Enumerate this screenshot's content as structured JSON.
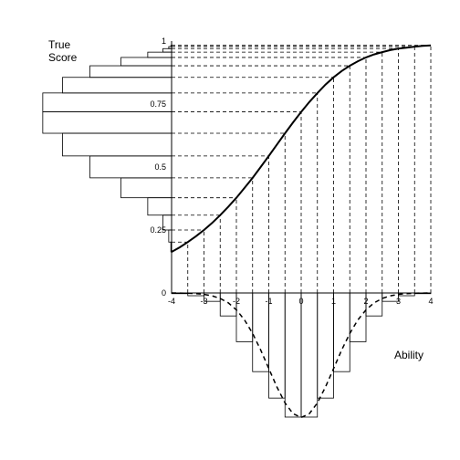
{
  "chart_data": {
    "type": "line",
    "ylabel": [
      "True",
      "Score"
    ],
    "xlabel": "Ability",
    "xlim": [
      -4,
      4
    ],
    "ylim": [
      0,
      1
    ],
    "x_ticks": [
      -4,
      -3,
      -2,
      -1,
      0,
      1,
      2,
      3,
      4
    ],
    "x_tick_labels": [
      "-4",
      "-3",
      "-2",
      "-1",
      "0",
      "1",
      "2",
      "3",
      "4"
    ],
    "y_ticks": [
      0,
      0.25,
      0.5,
      0.75,
      1
    ],
    "y_tick_labels": [
      "0",
      "0.25",
      "0.5",
      "0.75",
      "1"
    ],
    "grid": false,
    "curve": {
      "style": "solid",
      "x": [
        -4,
        -3.75,
        -3.5,
        -3.25,
        -3,
        -2.75,
        -2.5,
        -2.25,
        -2,
        -1.75,
        -1.5,
        -1.25,
        -1,
        -0.75,
        -0.5,
        -0.25,
        0,
        0.25,
        0.5,
        0.75,
        1,
        1.25,
        1.5,
        1.75,
        2,
        2.25,
        2.5,
        2.75,
        3,
        3.25,
        3.5,
        3.75,
        4
      ],
      "y": [
        0.163,
        0.181,
        0.202,
        0.225,
        0.25,
        0.278,
        0.309,
        0.342,
        0.378,
        0.417,
        0.457,
        0.5,
        0.544,
        0.589,
        0.634,
        0.677,
        0.719,
        0.758,
        0.794,
        0.827,
        0.856,
        0.881,
        0.902,
        0.92,
        0.935,
        0.947,
        0.956,
        0.964,
        0.97,
        0.974,
        0.978,
        0.981,
        0.983
      ]
    },
    "projection_x": [
      -3.5,
      -3,
      -2.5,
      -2,
      -1.5,
      -1,
      -0.5,
      0,
      0.5,
      1,
      1.5,
      2,
      2.5,
      3,
      3.5,
      4
    ],
    "ability_density": {
      "style": "dashed",
      "x": [
        -4,
        -3.75,
        -3.5,
        -3.25,
        -3,
        -2.75,
        -2.5,
        -2.25,
        -2,
        -1.75,
        -1.5,
        -1.25,
        -1,
        -0.75,
        -0.5,
        -0.25,
        0,
        0.25,
        0.5,
        0.75,
        1,
        1.25,
        1.5,
        1.75,
        2,
        2.25,
        2.5,
        2.75,
        3,
        3.25,
        3.5,
        3.75,
        4
      ],
      "y": [
        0.0001,
        0.0004,
        0.0009,
        0.002,
        0.0044,
        0.0091,
        0.0175,
        0.0317,
        0.054,
        0.0863,
        0.1295,
        0.1826,
        0.242,
        0.3011,
        0.3521,
        0.3867,
        0.3989,
        0.3867,
        0.3521,
        0.3011,
        0.242,
        0.1826,
        0.1295,
        0.0863,
        0.054,
        0.0317,
        0.0175,
        0.0091,
        0.0044,
        0.002,
        0.0009,
        0.0004,
        0.0001
      ]
    },
    "ability_histogram": {
      "bin_width": 0.5,
      "bins": [
        {
          "x0": -4,
          "x1": -3.5,
          "height": 0.0022
        },
        {
          "x0": -3.5,
          "x1": -3,
          "height": 0.0088
        },
        {
          "x0": -3,
          "x1": -2.5,
          "height": 0.0268
        },
        {
          "x0": -2.5,
          "x1": -2,
          "height": 0.0736
        },
        {
          "x0": -2,
          "x1": -1.5,
          "height": 0.1562
        },
        {
          "x0": -1.5,
          "x1": -1,
          "height": 0.252
        },
        {
          "x0": -1,
          "x1": -0.5,
          "height": 0.3367
        },
        {
          "x0": -0.5,
          "x1": 0,
          "height": 0.3976
        },
        {
          "x0": 0,
          "x1": 0.5,
          "height": 0.3976
        },
        {
          "x0": 0.5,
          "x1": 1,
          "height": 0.3367
        },
        {
          "x0": 1,
          "x1": 1.5,
          "height": 0.252
        },
        {
          "x0": 1.5,
          "x1": 2,
          "height": 0.1562
        },
        {
          "x0": 2,
          "x1": 2.5,
          "height": 0.0736
        },
        {
          "x0": 2.5,
          "x1": 3,
          "height": 0.0268
        },
        {
          "x0": 3,
          "x1": 3.5,
          "height": 0.0088
        },
        {
          "x0": 3.5,
          "x1": 4,
          "height": 0.0022
        }
      ]
    },
    "true_score_histogram": {
      "bins": [
        {
          "y0": 0.163,
          "y1": 0.202,
          "width": 0.0022
        },
        {
          "y0": 0.202,
          "y1": 0.25,
          "width": 0.0088
        },
        {
          "y0": 0.25,
          "y1": 0.309,
          "width": 0.0268
        },
        {
          "y0": 0.309,
          "y1": 0.378,
          "width": 0.0736
        },
        {
          "y0": 0.378,
          "y1": 0.457,
          "width": 0.1562
        },
        {
          "y0": 0.457,
          "y1": 0.544,
          "width": 0.252
        },
        {
          "y0": 0.544,
          "y1": 0.634,
          "width": 0.3367
        },
        {
          "y0": 0.634,
          "y1": 0.719,
          "width": 0.3976
        },
        {
          "y0": 0.719,
          "y1": 0.794,
          "width": 0.3976
        },
        {
          "y0": 0.794,
          "y1": 0.856,
          "width": 0.3367
        },
        {
          "y0": 0.856,
          "y1": 0.902,
          "width": 0.252
        },
        {
          "y0": 0.902,
          "y1": 0.935,
          "width": 0.1562
        },
        {
          "y0": 0.935,
          "y1": 0.956,
          "width": 0.0736
        },
        {
          "y0": 0.956,
          "y1": 0.97,
          "width": 0.0268
        },
        {
          "y0": 0.97,
          "y1": 0.978,
          "width": 0.0088
        },
        {
          "y0": 0.978,
          "y1": 0.983,
          "width": 0.0022
        }
      ]
    }
  }
}
